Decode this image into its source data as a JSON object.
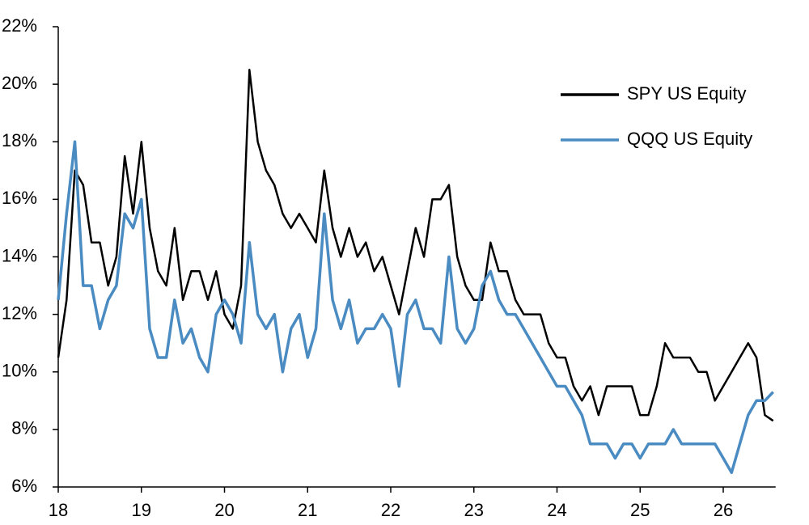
{
  "chart_data": {
    "type": "line",
    "x": [
      18.0,
      18.1,
      18.2,
      18.3,
      18.4,
      18.5,
      18.6,
      18.7,
      18.8,
      18.9,
      19.0,
      19.1,
      19.2,
      19.3,
      19.4,
      19.5,
      19.6,
      19.7,
      19.8,
      19.9,
      20.0,
      20.1,
      20.2,
      20.3,
      20.4,
      20.5,
      20.6,
      20.7,
      20.8,
      20.9,
      21.0,
      21.1,
      21.2,
      21.3,
      21.4,
      21.5,
      21.6,
      21.7,
      21.8,
      21.9,
      22.0,
      22.1,
      22.2,
      22.3,
      22.4,
      22.5,
      22.6,
      22.7,
      22.8,
      22.9,
      23.0,
      23.1,
      23.2,
      23.3,
      23.4,
      23.5,
      23.6,
      23.7,
      23.8,
      23.9,
      24.0,
      24.1,
      24.2,
      24.3,
      24.4,
      24.5,
      24.6,
      24.7,
      24.8,
      24.9,
      25.0,
      25.1,
      25.2,
      25.3,
      25.4,
      25.5,
      25.6,
      25.7,
      25.8,
      25.9,
      26.0,
      26.1,
      26.2,
      26.3,
      26.4,
      26.5,
      26.6
    ],
    "series": [
      {
        "name": "SPY US Equity",
        "color": "#000000",
        "values": [
          10.5,
          12.5,
          17.0,
          16.5,
          14.5,
          14.5,
          13.0,
          14.0,
          17.5,
          15.5,
          18.0,
          15.0,
          13.5,
          13.0,
          15.0,
          12.5,
          13.5,
          13.5,
          12.5,
          13.5,
          12.0,
          11.5,
          13.0,
          20.5,
          18.0,
          17.0,
          16.5,
          15.5,
          15.0,
          15.5,
          15.0,
          14.5,
          17.0,
          15.0,
          14.0,
          15.0,
          14.0,
          14.5,
          13.5,
          14.0,
          13.0,
          12.0,
          13.5,
          15.0,
          14.0,
          16.0,
          16.0,
          16.5,
          14.0,
          13.0,
          12.5,
          12.5,
          14.5,
          13.5,
          13.5,
          12.5,
          12.0,
          12.0,
          12.0,
          11.0,
          10.5,
          10.5,
          9.5,
          9.0,
          9.5,
          8.5,
          9.5,
          9.5,
          9.5,
          9.5,
          8.5,
          8.5,
          9.5,
          11.0,
          10.5,
          10.5,
          10.5,
          10.0,
          10.0,
          9.0,
          9.5,
          10.0,
          10.5,
          11.0,
          10.5,
          8.5,
          8.3
        ]
      },
      {
        "name": "QQQ US Equity",
        "color": "#4a8bc2",
        "values": [
          12.5,
          15.5,
          18.0,
          13.0,
          13.0,
          11.5,
          12.5,
          13.0,
          15.5,
          15.0,
          16.0,
          11.5,
          10.5,
          10.5,
          12.5,
          11.0,
          11.5,
          10.5,
          10.0,
          12.0,
          12.5,
          12.0,
          11.0,
          14.5,
          12.0,
          11.5,
          12.0,
          10.0,
          11.5,
          12.0,
          10.5,
          11.5,
          15.5,
          12.5,
          11.5,
          12.5,
          11.0,
          11.5,
          11.5,
          12.0,
          11.5,
          9.5,
          12.0,
          12.5,
          11.5,
          11.5,
          11.0,
          14.0,
          11.5,
          11.0,
          11.5,
          13.0,
          13.5,
          12.5,
          12.0,
          12.0,
          11.5,
          11.0,
          10.5,
          10.0,
          9.5,
          9.5,
          9.0,
          8.5,
          7.5,
          7.5,
          7.5,
          7.0,
          7.5,
          7.5,
          7.0,
          7.5,
          7.5,
          7.5,
          8.0,
          7.5,
          7.5,
          7.5,
          7.5,
          7.5,
          7.0,
          6.5,
          7.5,
          8.5,
          9.0,
          9.0,
          9.3
        ]
      }
    ],
    "xlim": [
      18,
      26.63
    ],
    "xticks": [
      18,
      19,
      20,
      21,
      22,
      23,
      24,
      25,
      26
    ],
    "ylim": [
      6,
      22
    ],
    "yticks": [
      {
        "value": 6,
        "label": "6%"
      },
      {
        "value": 8,
        "label": "8%"
      },
      {
        "value": 10,
        "label": "10%"
      },
      {
        "value": 12,
        "label": "12%"
      },
      {
        "value": 14,
        "label": "14%"
      },
      {
        "value": 16,
        "label": "16%"
      },
      {
        "value": 18,
        "label": "18%"
      },
      {
        "value": 20,
        "label": "20%"
      },
      {
        "value": 22,
        "label": "22%"
      }
    ],
    "legend": "top-right"
  }
}
